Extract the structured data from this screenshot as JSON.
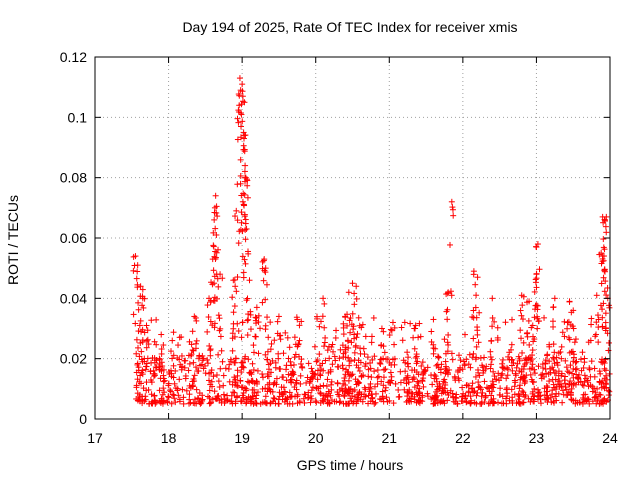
{
  "chart_data": {
    "type": "scatter",
    "title": "Day 194 of 2025, Rate Of TEC Index for receiver xmis",
    "xlabel": "GPS time / hours",
    "ylabel": "ROTI / TECUs",
    "xlim": [
      17,
      24
    ],
    "ylim": [
      0,
      0.12
    ],
    "xticks": [
      17,
      18,
      19,
      20,
      21,
      22,
      23,
      24
    ],
    "yticks": [
      0,
      0.02,
      0.04,
      0.06,
      0.08,
      0.1,
      0.12
    ],
    "xtick_labels": [
      "17",
      "18",
      "19",
      "20",
      "21",
      "22",
      "23",
      "24"
    ],
    "ytick_labels": [
      "0",
      "0.02",
      "0.04",
      "0.06",
      "0.08",
      "0.1",
      "0.12"
    ],
    "grid": true,
    "marker": "+",
    "color": "#ff0000",
    "series": [
      {
        "name": "ROTI",
        "x_range": [
          17.55,
          24.0
        ],
        "baseline_range": [
          0.005,
          0.02
        ],
        "highlights": [
          {
            "x": 17.55,
            "y": 0.054
          },
          {
            "x": 17.58,
            "y": 0.051
          },
          {
            "x": 17.62,
            "y": 0.044
          },
          {
            "x": 17.65,
            "y": 0.04
          },
          {
            "x": 17.7,
            "y": 0.031
          },
          {
            "x": 17.9,
            "y": 0.028
          },
          {
            "x": 18.05,
            "y": 0.026
          },
          {
            "x": 18.35,
            "y": 0.034
          },
          {
            "x": 18.55,
            "y": 0.04
          },
          {
            "x": 18.6,
            "y": 0.053
          },
          {
            "x": 18.62,
            "y": 0.066
          },
          {
            "x": 18.63,
            "y": 0.07
          },
          {
            "x": 18.64,
            "y": 0.074
          },
          {
            "x": 18.65,
            "y": 0.061
          },
          {
            "x": 18.7,
            "y": 0.048
          },
          {
            "x": 18.88,
            "y": 0.046
          },
          {
            "x": 18.92,
            "y": 0.069
          },
          {
            "x": 18.96,
            "y": 0.104
          },
          {
            "x": 18.97,
            "y": 0.113
          },
          {
            "x": 18.98,
            "y": 0.109
          },
          {
            "x": 19.0,
            "y": 0.111
          },
          {
            "x": 19.01,
            "y": 0.107
          },
          {
            "x": 19.02,
            "y": 0.095
          },
          {
            "x": 19.03,
            "y": 0.094
          },
          {
            "x": 19.04,
            "y": 0.084
          },
          {
            "x": 19.05,
            "y": 0.08
          },
          {
            "x": 19.06,
            "y": 0.063
          },
          {
            "x": 19.1,
            "y": 0.046
          },
          {
            "x": 19.2,
            "y": 0.037
          },
          {
            "x": 19.3,
            "y": 0.053
          },
          {
            "x": 19.32,
            "y": 0.05
          },
          {
            "x": 19.5,
            "y": 0.034
          },
          {
            "x": 19.75,
            "y": 0.033
          },
          {
            "x": 20.1,
            "y": 0.04
          },
          {
            "x": 20.4,
            "y": 0.034
          },
          {
            "x": 20.45,
            "y": 0.042
          },
          {
            "x": 20.5,
            "y": 0.045
          },
          {
            "x": 20.55,
            "y": 0.044
          },
          {
            "x": 20.9,
            "y": 0.03
          },
          {
            "x": 21.05,
            "y": 0.032
          },
          {
            "x": 21.35,
            "y": 0.03
          },
          {
            "x": 21.6,
            "y": 0.033
          },
          {
            "x": 21.8,
            "y": 0.042
          },
          {
            "x": 21.85,
            "y": 0.072
          },
          {
            "x": 22.15,
            "y": 0.049
          },
          {
            "x": 22.2,
            "y": 0.047
          },
          {
            "x": 22.4,
            "y": 0.04
          },
          {
            "x": 22.8,
            "y": 0.041
          },
          {
            "x": 22.9,
            "y": 0.039
          },
          {
            "x": 22.95,
            "y": 0.031
          },
          {
            "x": 23.0,
            "y": 0.048
          },
          {
            "x": 23.0,
            "y": 0.057
          },
          {
            "x": 23.02,
            "y": 0.058
          },
          {
            "x": 23.25,
            "y": 0.04
          },
          {
            "x": 23.45,
            "y": 0.039
          },
          {
            "x": 23.5,
            "y": 0.036
          },
          {
            "x": 23.82,
            "y": 0.041
          },
          {
            "x": 23.88,
            "y": 0.055
          },
          {
            "x": 23.9,
            "y": 0.054
          },
          {
            "x": 23.9,
            "y": 0.067
          },
          {
            "x": 23.93,
            "y": 0.066
          },
          {
            "x": 23.95,
            "y": 0.067
          },
          {
            "x": 23.97,
            "y": 0.04
          }
        ]
      }
    ]
  }
}
